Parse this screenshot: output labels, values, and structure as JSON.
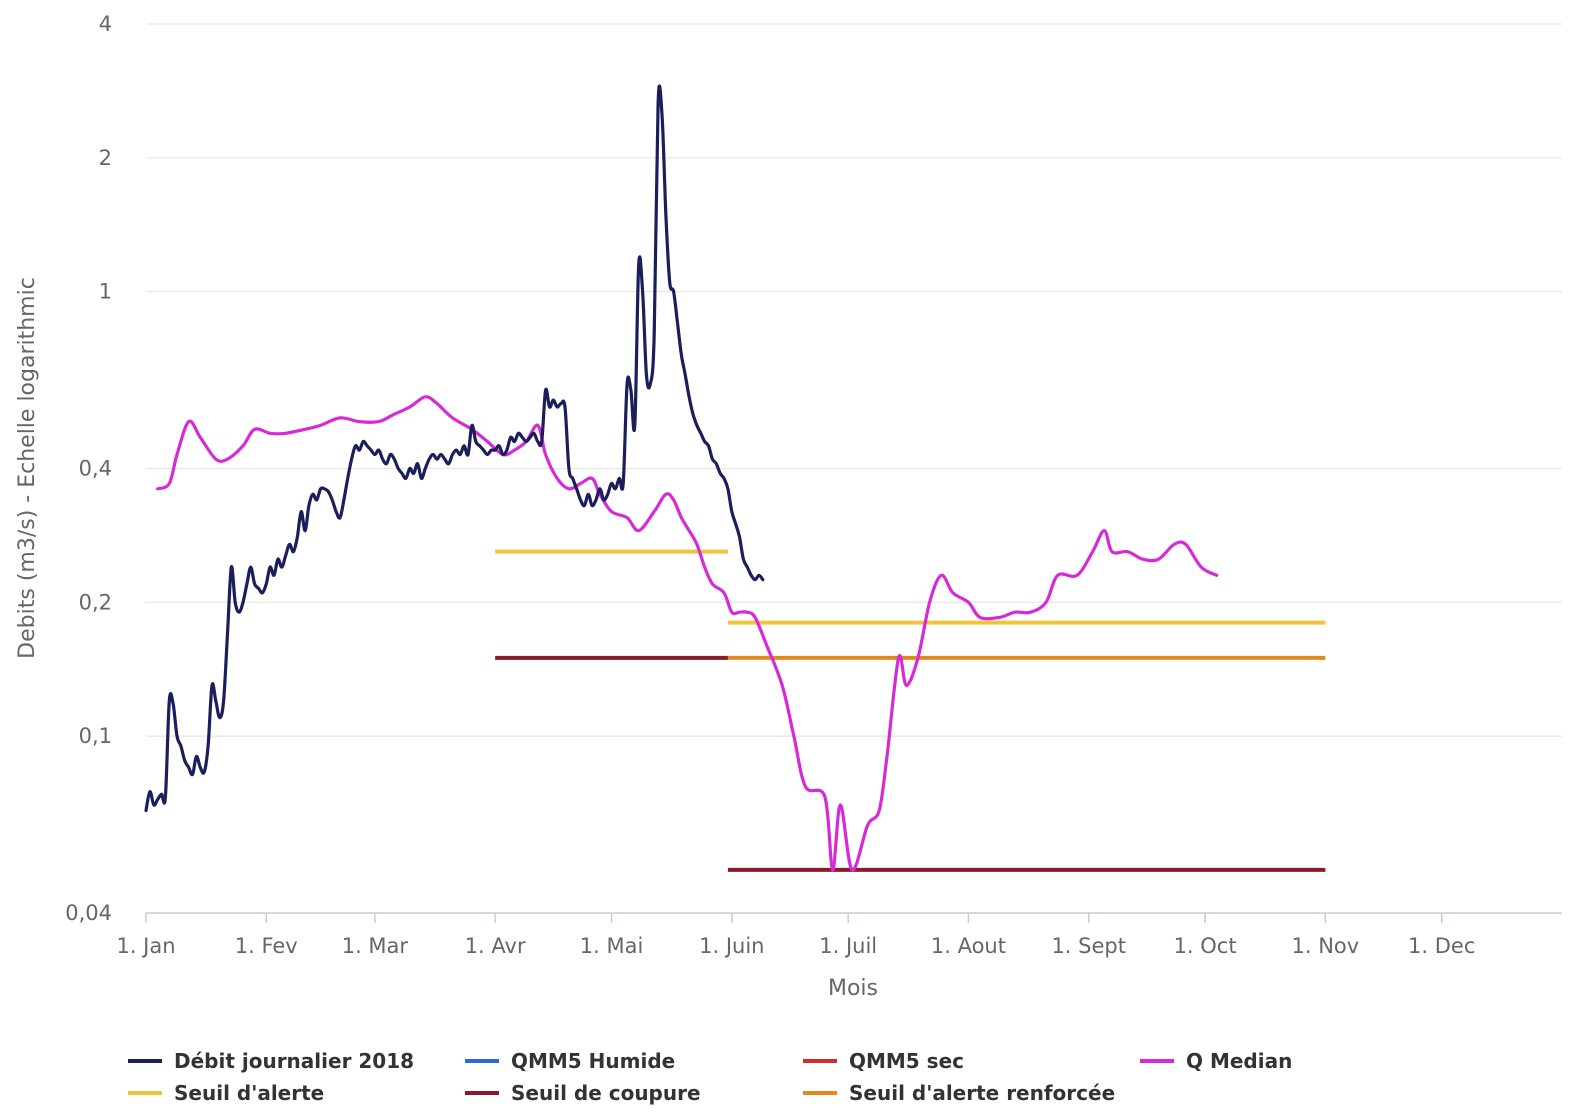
{
  "chart_data": {
    "type": "line",
    "title": "",
    "xlabel": "Mois",
    "ylabel": "Debits (m3/s) - Echelle logarithmic",
    "yscale": "log",
    "ylim": [
      0.04,
      4
    ],
    "xlim_days": [
      0,
      365
    ],
    "ytick_labels": [
      {
        "value": 0.04,
        "label": "0,04"
      },
      {
        "value": 0.1,
        "label": "0,1"
      },
      {
        "value": 0.2,
        "label": "0,2"
      },
      {
        "value": 0.4,
        "label": "0,4"
      },
      {
        "value": 1,
        "label": "1"
      },
      {
        "value": 2,
        "label": "2"
      },
      {
        "value": 4,
        "label": "4"
      }
    ],
    "xtick_labels": [
      {
        "day": 0,
        "label": "1. Jan"
      },
      {
        "day": 31,
        "label": "1. Fev"
      },
      {
        "day": 59,
        "label": "1. Mar"
      },
      {
        "day": 90,
        "label": "1. Avr"
      },
      {
        "day": 120,
        "label": "1. Mai"
      },
      {
        "day": 151,
        "label": "1. Juin"
      },
      {
        "day": 181,
        "label": "1. Juil"
      },
      {
        "day": 212,
        "label": "1. Aout"
      },
      {
        "day": 243,
        "label": "1. Sept"
      },
      {
        "day": 273,
        "label": "1. Oct"
      },
      {
        "day": 304,
        "label": "1. Nov"
      },
      {
        "day": 334,
        "label": "1. Dec"
      }
    ],
    "grid": true,
    "legend_position": "bottom",
    "series": [
      {
        "name": "Débit journalier 2018",
        "color": "#1a1f5c",
        "points": [
          [
            0,
            0.068
          ],
          [
            1,
            0.075
          ],
          [
            2,
            0.07
          ],
          [
            3,
            0.072
          ],
          [
            4,
            0.074
          ],
          [
            5,
            0.073
          ],
          [
            6,
            0.12
          ],
          [
            7,
            0.118
          ],
          [
            8,
            0.1
          ],
          [
            9,
            0.095
          ],
          [
            10,
            0.088
          ],
          [
            11,
            0.085
          ],
          [
            12,
            0.082
          ],
          [
            13,
            0.09
          ],
          [
            14,
            0.085
          ],
          [
            15,
            0.083
          ],
          [
            16,
            0.095
          ],
          [
            17,
            0.13
          ],
          [
            18,
            0.12
          ],
          [
            19,
            0.11
          ],
          [
            20,
            0.12
          ],
          [
            21,
            0.17
          ],
          [
            22,
            0.24
          ],
          [
            23,
            0.2
          ],
          [
            24,
            0.19
          ],
          [
            25,
            0.2
          ],
          [
            26,
            0.22
          ],
          [
            27,
            0.24
          ],
          [
            28,
            0.22
          ],
          [
            29,
            0.215
          ],
          [
            30,
            0.21
          ],
          [
            31,
            0.22
          ],
          [
            32,
            0.24
          ],
          [
            33,
            0.23
          ],
          [
            34,
            0.25
          ],
          [
            35,
            0.24
          ],
          [
            36,
            0.255
          ],
          [
            37,
            0.27
          ],
          [
            38,
            0.26
          ],
          [
            39,
            0.28
          ],
          [
            40,
            0.32
          ],
          [
            41,
            0.29
          ],
          [
            42,
            0.33
          ],
          [
            43,
            0.35
          ],
          [
            44,
            0.34
          ],
          [
            45,
            0.36
          ],
          [
            46,
            0.36
          ],
          [
            47,
            0.355
          ],
          [
            48,
            0.34
          ],
          [
            49,
            0.32
          ],
          [
            50,
            0.31
          ],
          [
            51,
            0.34
          ],
          [
            52,
            0.38
          ],
          [
            53,
            0.42
          ],
          [
            54,
            0.45
          ],
          [
            55,
            0.44
          ],
          [
            56,
            0.46
          ],
          [
            57,
            0.45
          ],
          [
            58,
            0.44
          ],
          [
            59,
            0.43
          ],
          [
            60,
            0.44
          ],
          [
            61,
            0.42
          ],
          [
            62,
            0.41
          ],
          [
            63,
            0.43
          ],
          [
            64,
            0.42
          ],
          [
            65,
            0.4
          ],
          [
            66,
            0.39
          ],
          [
            67,
            0.38
          ],
          [
            68,
            0.4
          ],
          [
            69,
            0.39
          ],
          [
            70,
            0.41
          ],
          [
            71,
            0.38
          ],
          [
            72,
            0.4
          ],
          [
            73,
            0.42
          ],
          [
            74,
            0.43
          ],
          [
            75,
            0.42
          ],
          [
            76,
            0.43
          ],
          [
            77,
            0.42
          ],
          [
            78,
            0.41
          ],
          [
            79,
            0.43
          ],
          [
            80,
            0.44
          ],
          [
            81,
            0.43
          ],
          [
            82,
            0.45
          ],
          [
            83,
            0.43
          ],
          [
            84,
            0.5
          ],
          [
            85,
            0.46
          ],
          [
            86,
            0.45
          ],
          [
            87,
            0.44
          ],
          [
            88,
            0.43
          ],
          [
            89,
            0.44
          ],
          [
            90,
            0.44
          ],
          [
            91,
            0.45
          ],
          [
            92,
            0.43
          ],
          [
            93,
            0.44
          ],
          [
            94,
            0.47
          ],
          [
            95,
            0.46
          ],
          [
            96,
            0.48
          ],
          [
            97,
            0.47
          ],
          [
            98,
            0.46
          ],
          [
            99,
            0.47
          ],
          [
            100,
            0.48
          ],
          [
            101,
            0.46
          ],
          [
            102,
            0.46
          ],
          [
            103,
            0.6
          ],
          [
            104,
            0.55
          ],
          [
            105,
            0.57
          ],
          [
            106,
            0.55
          ],
          [
            107,
            0.56
          ],
          [
            108,
            0.55
          ],
          [
            109,
            0.4
          ],
          [
            110,
            0.38
          ],
          [
            111,
            0.36
          ],
          [
            112,
            0.34
          ],
          [
            113,
            0.33
          ],
          [
            114,
            0.35
          ],
          [
            115,
            0.33
          ],
          [
            116,
            0.34
          ],
          [
            117,
            0.36
          ],
          [
            118,
            0.34
          ],
          [
            119,
            0.35
          ],
          [
            120,
            0.37
          ],
          [
            121,
            0.36
          ],
          [
            122,
            0.38
          ],
          [
            123,
            0.37
          ],
          [
            124,
            0.62
          ],
          [
            125,
            0.6
          ],
          [
            126,
            0.5
          ],
          [
            127,
            1.15
          ],
          [
            128,
            1.0
          ],
          [
            129,
            0.65
          ],
          [
            130,
            0.62
          ],
          [
            131,
            0.8
          ],
          [
            132,
            2.65
          ],
          [
            133,
            2.5
          ],
          [
            134,
            1.5
          ],
          [
            135,
            1.05
          ],
          [
            136,
            1.0
          ],
          [
            137,
            0.85
          ],
          [
            138,
            0.72
          ],
          [
            139,
            0.65
          ],
          [
            140,
            0.58
          ],
          [
            141,
            0.53
          ],
          [
            142,
            0.5
          ],
          [
            143,
            0.48
          ],
          [
            144,
            0.46
          ],
          [
            145,
            0.45
          ],
          [
            146,
            0.42
          ],
          [
            147,
            0.41
          ],
          [
            148,
            0.39
          ],
          [
            149,
            0.38
          ],
          [
            150,
            0.36
          ],
          [
            151,
            0.32
          ],
          [
            152,
            0.3
          ],
          [
            153,
            0.28
          ],
          [
            154,
            0.25
          ],
          [
            155,
            0.24
          ],
          [
            156,
            0.23
          ],
          [
            157,
            0.225
          ],
          [
            158,
            0.23
          ],
          [
            159,
            0.225
          ]
        ]
      },
      {
        "name": "Q Median",
        "color": "#d62ad6",
        "points": [
          [
            3,
            0.36
          ],
          [
            6,
            0.37
          ],
          [
            8,
            0.43
          ],
          [
            11,
            0.51
          ],
          [
            14,
            0.47
          ],
          [
            18,
            0.42
          ],
          [
            21,
            0.42
          ],
          [
            25,
            0.45
          ],
          [
            28,
            0.49
          ],
          [
            32,
            0.48
          ],
          [
            36,
            0.48
          ],
          [
            41,
            0.49
          ],
          [
            45,
            0.5
          ],
          [
            50,
            0.52
          ],
          [
            55,
            0.51
          ],
          [
            60,
            0.51
          ],
          [
            64,
            0.53
          ],
          [
            68,
            0.55
          ],
          [
            72,
            0.58
          ],
          [
            75,
            0.56
          ],
          [
            79,
            0.52
          ],
          [
            84,
            0.49
          ],
          [
            88,
            0.46
          ],
          [
            92,
            0.43
          ],
          [
            95,
            0.44
          ],
          [
            98,
            0.46
          ],
          [
            101,
            0.5
          ],
          [
            103,
            0.43
          ],
          [
            106,
            0.38
          ],
          [
            109,
            0.36
          ],
          [
            112,
            0.37
          ],
          [
            115,
            0.38
          ],
          [
            117,
            0.35
          ],
          [
            120,
            0.32
          ],
          [
            124,
            0.31
          ],
          [
            127,
            0.29
          ],
          [
            131,
            0.32
          ],
          [
            134,
            0.35
          ],
          [
            136,
            0.34
          ],
          [
            138,
            0.31
          ],
          [
            140,
            0.29
          ],
          [
            142,
            0.27
          ],
          [
            144,
            0.24
          ],
          [
            146,
            0.22
          ],
          [
            149,
            0.21
          ],
          [
            151,
            0.19
          ],
          [
            153,
            0.19
          ],
          [
            155,
            0.19
          ],
          [
            157,
            0.185
          ],
          [
            160,
            0.16
          ],
          [
            164,
            0.13
          ],
          [
            167,
            0.1
          ],
          [
            170,
            0.077
          ],
          [
            175,
            0.073
          ],
          [
            177,
            0.05
          ],
          [
            179,
            0.07
          ],
          [
            182,
            0.05
          ],
          [
            186,
            0.063
          ],
          [
            189,
            0.068
          ],
          [
            191,
            0.09
          ],
          [
            194,
            0.15
          ],
          [
            196,
            0.13
          ],
          [
            199,
            0.15
          ],
          [
            202,
            0.2
          ],
          [
            205,
            0.23
          ],
          [
            208,
            0.21
          ],
          [
            212,
            0.2
          ],
          [
            215,
            0.185
          ],
          [
            220,
            0.185
          ],
          [
            224,
            0.19
          ],
          [
            228,
            0.19
          ],
          [
            232,
            0.2
          ],
          [
            235,
            0.23
          ],
          [
            240,
            0.23
          ],
          [
            244,
            0.26
          ],
          [
            247,
            0.29
          ],
          [
            249,
            0.26
          ],
          [
            253,
            0.26
          ],
          [
            257,
            0.25
          ],
          [
            261,
            0.25
          ],
          [
            265,
            0.27
          ],
          [
            268,
            0.27
          ],
          [
            272,
            0.24
          ],
          [
            276,
            0.23
          ]
        ]
      }
    ],
    "thresholds": [
      {
        "name": "Seuil d'alerte",
        "color": "#f0c43c",
        "segments": [
          [
            90,
            150,
            0.26
          ],
          [
            150,
            304,
            0.18
          ]
        ]
      },
      {
        "name": "Seuil d'alerte renforcée",
        "color": "#e08a1e",
        "segments": [
          [
            150,
            304,
            0.15
          ]
        ]
      },
      {
        "name": "Seuil de coupure",
        "color": "#8b1a2a",
        "segments": [
          [
            90,
            150,
            0.15
          ],
          [
            150,
            304,
            0.05
          ]
        ]
      }
    ],
    "legend": [
      {
        "name": "Débit journalier 2018",
        "color": "#1a1f5c"
      },
      {
        "name": "QMM5 Humide",
        "color": "#2a6ad6"
      },
      {
        "name": "QMM5 sec",
        "color": "#d62a2a"
      },
      {
        "name": "Q Median",
        "color": "#d62ad6"
      },
      {
        "name": "Seuil d'alerte",
        "color": "#f0c43c"
      },
      {
        "name": "Seuil de coupure",
        "color": "#8b1a2a"
      },
      {
        "name": "Seuil d'alerte renforcée",
        "color": "#e08a1e"
      }
    ]
  }
}
